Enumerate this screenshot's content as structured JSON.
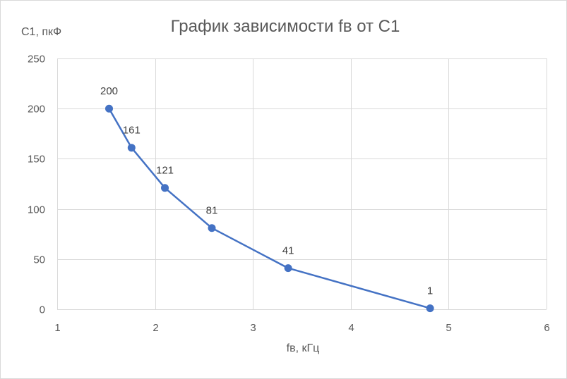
{
  "chart_data": {
    "type": "scatter",
    "title": "График зависимости fв от С1",
    "xlabel": "fв, кГц",
    "ylabel": "С1, пкФ",
    "xlim": [
      1,
      6
    ],
    "ylim": [
      0,
      250
    ],
    "x_ticks": [
      1,
      2,
      3,
      4,
      5,
      6
    ],
    "y_ticks": [
      0,
      50,
      100,
      150,
      200,
      250
    ],
    "grid": true,
    "legend": "none",
    "series": [
      {
        "color": "#4472c4",
        "points": [
          {
            "x": 1.53,
            "y": 200,
            "label": "200"
          },
          {
            "x": 1.76,
            "y": 161,
            "label": "161"
          },
          {
            "x": 2.1,
            "y": 121,
            "label": "121"
          },
          {
            "x": 2.58,
            "y": 81,
            "label": "81"
          },
          {
            "x": 3.36,
            "y": 41,
            "label": "41"
          },
          {
            "x": 4.81,
            "y": 1,
            "label": "1"
          }
        ]
      }
    ]
  }
}
